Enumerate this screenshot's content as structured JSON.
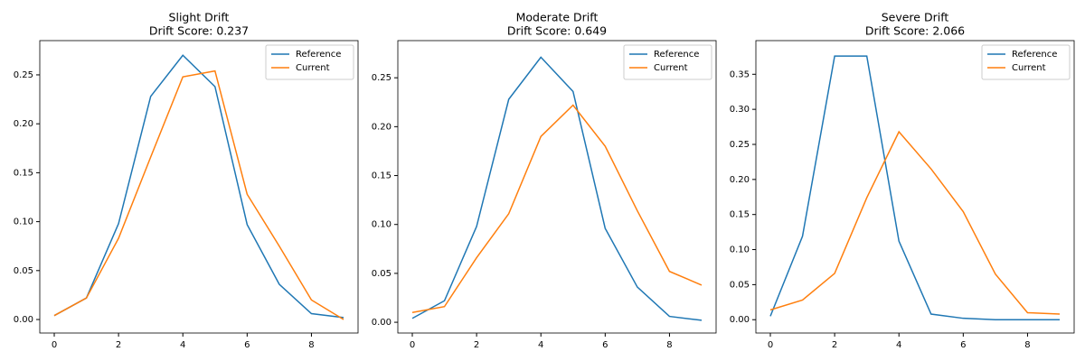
{
  "chart_data": [
    {
      "type": "line",
      "title": "Slight Drift",
      "subtitle": "Drift Score: 0.237",
      "x": [
        0,
        1,
        2,
        3,
        4,
        5,
        6,
        7,
        8,
        9
      ],
      "series": [
        {
          "name": "Reference",
          "color": "#1f77b4",
          "values": [
            0.004,
            0.022,
            0.098,
            0.228,
            0.27,
            0.238,
            0.097,
            0.036,
            0.006,
            0.002
          ]
        },
        {
          "name": "Current",
          "color": "#ff7f0e",
          "values": [
            0.004,
            0.022,
            0.083,
            0.166,
            0.248,
            0.254,
            0.128,
            0.075,
            0.02,
            0.0
          ]
        }
      ],
      "xlim": [
        -0.45,
        9.45
      ],
      "xticks": [
        0,
        2,
        4,
        6,
        8
      ],
      "ylim": [
        -0.0138,
        0.285
      ],
      "yticks": [
        {
          "value": 0,
          "label": "0.00"
        },
        {
          "value": 0.05,
          "label": "0.05"
        },
        {
          "value": 0.1,
          "label": "0.10"
        },
        {
          "value": 0.15,
          "label": "0.15"
        },
        {
          "value": 0.2,
          "label": "0.20"
        },
        {
          "value": 0.25,
          "label": "0.25"
        }
      ],
      "legend": "upper right",
      "grid": false
    },
    {
      "type": "line",
      "title": "Moderate Drift",
      "subtitle": "Drift Score: 0.649",
      "x": [
        0,
        1,
        2,
        3,
        4,
        5,
        6,
        7,
        8,
        9
      ],
      "series": [
        {
          "name": "Reference",
          "color": "#1f77b4",
          "values": [
            0.004,
            0.022,
            0.098,
            0.228,
            0.271,
            0.236,
            0.096,
            0.036,
            0.006,
            0.002
          ]
        },
        {
          "name": "Current",
          "color": "#ff7f0e",
          "values": [
            0.01,
            0.016,
            0.066,
            0.111,
            0.19,
            0.222,
            0.18,
            0.114,
            0.052,
            0.038
          ]
        }
      ],
      "xlim": [
        -0.45,
        9.45
      ],
      "xticks": [
        0,
        2,
        4,
        6,
        8
      ],
      "ylim": [
        -0.011,
        0.288
      ],
      "yticks": [
        {
          "value": 0,
          "label": "0.00"
        },
        {
          "value": 0.05,
          "label": "0.05"
        },
        {
          "value": 0.1,
          "label": "0.10"
        },
        {
          "value": 0.15,
          "label": "0.15"
        },
        {
          "value": 0.2,
          "label": "0.20"
        },
        {
          "value": 0.25,
          "label": "0.25"
        }
      ],
      "legend": "upper right",
      "grid": false
    },
    {
      "type": "line",
      "title": "Severe Drift",
      "subtitle": "Drift Score: 2.066",
      "x": [
        0,
        1,
        2,
        3,
        4,
        5,
        6,
        7,
        8,
        9
      ],
      "series": [
        {
          "name": "Reference",
          "color": "#1f77b4",
          "values": [
            0.005,
            0.119,
            0.376,
            0.376,
            0.112,
            0.008,
            0.002,
            0.0,
            0.0,
            0.0
          ]
        },
        {
          "name": "Current",
          "color": "#ff7f0e",
          "values": [
            0.014,
            0.028,
            0.066,
            0.174,
            0.268,
            0.215,
            0.154,
            0.065,
            0.01,
            0.008
          ]
        }
      ],
      "xlim": [
        -0.45,
        9.45
      ],
      "xticks": [
        0,
        2,
        4,
        6,
        8
      ],
      "ylim": [
        -0.019,
        0.398
      ],
      "yticks": [
        {
          "value": 0,
          "label": "0.00"
        },
        {
          "value": 0.05,
          "label": "0.05"
        },
        {
          "value": 0.1,
          "label": "0.10"
        },
        {
          "value": 0.15,
          "label": "0.15"
        },
        {
          "value": 0.2,
          "label": "0.20"
        },
        {
          "value": 0.25,
          "label": "0.25"
        },
        {
          "value": 0.3,
          "label": "0.30"
        },
        {
          "value": 0.35,
          "label": "0.35"
        }
      ],
      "legend": "upper right",
      "grid": false
    }
  ]
}
